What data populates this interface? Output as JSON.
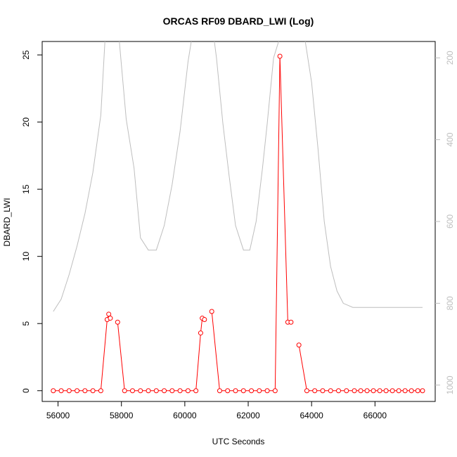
{
  "chart_data": {
    "type": "line",
    "title": "ORCAS RF09 DBARD_LWI (Log)",
    "xlabel": "UTC Seconds",
    "ylabel": "DBARD_LWI",
    "xlim": [
      55500,
      67900
    ],
    "ylim": [
      -0.8,
      26
    ],
    "x_ticks": [
      56000,
      58000,
      60000,
      62000,
      64000,
      66000
    ],
    "y_ticks": [
      0,
      5,
      10,
      15,
      20,
      25
    ],
    "y2_ticks": [
      200,
      400,
      600,
      800,
      1000
    ],
    "y2_lim": [
      1040,
      160
    ],
    "y2_color": "#bebebe",
    "grid": false,
    "series": [
      {
        "color": "#ff0000",
        "style": "line-with-circles",
        "segments": [
          {
            "x": [
              55850,
              56100,
              56350,
              56600,
              56850,
              57100,
              57350,
              57550,
              57600,
              57650
            ],
            "y": [
              0,
              0,
              0,
              0,
              0,
              0,
              0,
              5.3,
              5.7,
              5.4
            ]
          },
          {
            "x": [
              57880,
              58100,
              58350,
              58600,
              58850,
              59100,
              59350,
              59600,
              59850,
              60100,
              60350,
              60500,
              60550,
              60620
            ],
            "y": [
              5.1,
              0,
              0,
              0,
              0,
              0,
              0,
              0,
              0,
              0,
              0,
              4.3,
              5.4,
              5.3
            ]
          },
          {
            "x": [
              60850,
              61100,
              61350,
              61600,
              61850,
              62100,
              62350,
              62600,
              62850,
              63000,
              63250,
              63350
            ],
            "y": [
              5.9,
              0,
              0,
              0,
              0,
              0,
              0,
              0,
              0,
              24.9,
              5.1,
              5.1
            ]
          },
          {
            "x": [
              63600,
              63850,
              64100,
              64350,
              64600,
              64850,
              65100,
              65350,
              65550,
              65750,
              65950,
              66150,
              66350,
              66550,
              66750,
              66950,
              67150,
              67350,
              67500
            ],
            "y": [
              3.4,
              0,
              0,
              0,
              0,
              0,
              0,
              0,
              0,
              0,
              0,
              0,
              0,
              0,
              0,
              0,
              0,
              0,
              0
            ]
          }
        ]
      },
      {
        "color": "#bebebe",
        "style": "line",
        "axis": "right",
        "x": [
          55850,
          56100,
          56350,
          56600,
          56850,
          57100,
          57350,
          57500,
          57700,
          57900,
          58150,
          58400,
          58600,
          58850,
          59100,
          59350,
          59600,
          59850,
          60100,
          60350,
          60550,
          60800,
          61000,
          61200,
          61400,
          61600,
          61850,
          62050,
          62250,
          62450,
          62600,
          62800,
          63000,
          63200,
          63350,
          63600,
          63800,
          64000,
          64200,
          64400,
          64600,
          64800,
          65000,
          65300,
          65600,
          66000,
          66500,
          67000,
          67500
        ],
        "y": [
          820,
          790,
          730,
          660,
          580,
          480,
          340,
          130,
          110,
          130,
          350,
          470,
          640,
          670,
          670,
          610,
          510,
          380,
          210,
          90,
          60,
          80,
          200,
          360,
          490,
          610,
          670,
          670,
          600,
          470,
          360,
          200,
          150,
          100,
          60,
          70,
          160,
          260,
          420,
          600,
          710,
          770,
          800,
          810,
          810,
          810,
          810,
          810,
          810
        ]
      }
    ]
  }
}
